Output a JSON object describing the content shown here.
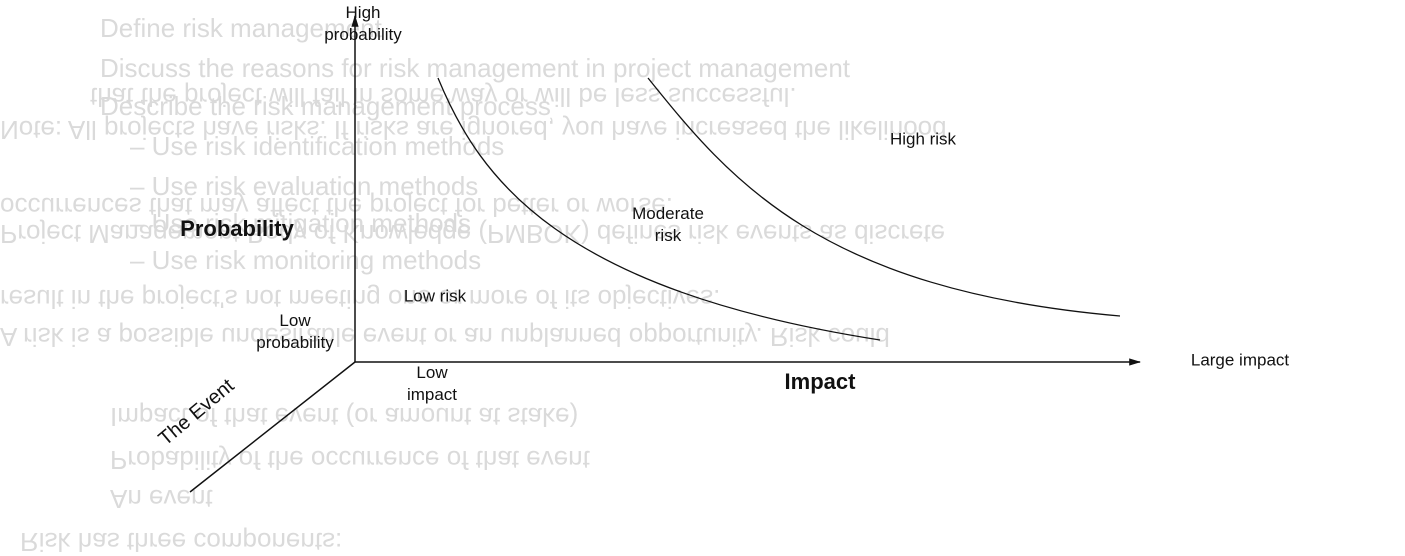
{
  "diagram": {
    "axes": {
      "vertical_top": "High probability",
      "vertical_title": "Probability",
      "vertical_bottom": "Low probability",
      "horizontal_start": "Low impact",
      "horizontal_title": "Impact",
      "horizontal_end": "Large impact",
      "depth_title": "The Event"
    },
    "regions": {
      "low": "Low risk",
      "moderate": "Moderate risk",
      "high": "High risk"
    },
    "bleed_through": {
      "upright": [
        "Define risk management",
        "Discuss the reasons for risk management in project management",
        "Describe the risk management process",
        "– Use risk identification methods",
        "– Use risk evaluation methods",
        "– Use risk mitigation methods",
        "– Use risk monitoring methods"
      ],
      "mirrored": [
        "Risk has three components:",
        "An event",
        "Probability of the occurrence of that event",
        "Impact of that event (or amount at stake)",
        "A risk is a possible undesirable event or an unplanned opportunity. Risk could",
        "result in the project's not meeting one or more of its objectives.",
        "Project Management Body of Knowledge (PMBOK) defines risk events as discrete",
        "occurrences that may affect the project for better or worse.",
        "Note: All projects have risks. If risks are ignored, you have increased the likelihood",
        "that the project will fail in some way or will be less successful."
      ]
    }
  }
}
